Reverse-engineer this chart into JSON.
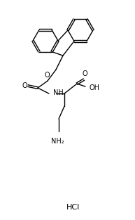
{
  "bg_color": "#ffffff",
  "line_color": "#000000",
  "figsize": [
    1.93,
    3.13
  ],
  "dpi": 100,
  "lw": 1.0,
  "label_HCl": "HCl",
  "label_NH": "NH",
  "label_O_ester": "O",
  "label_O_carbonyl": "O",
  "label_OH": "OH",
  "label_NH2": "NH₂",
  "label_COOH_O": "O"
}
